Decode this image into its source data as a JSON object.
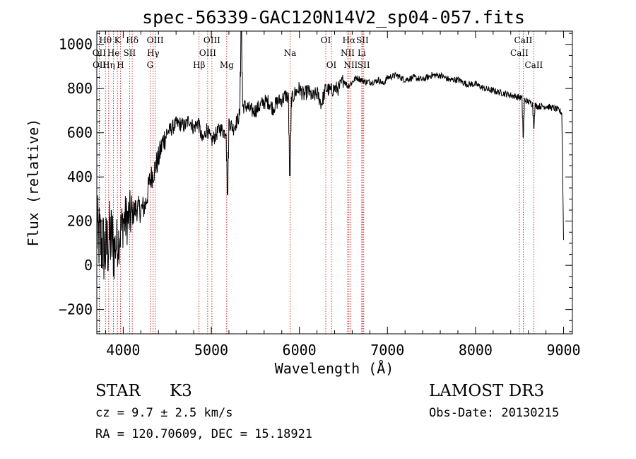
{
  "chart_data": {
    "type": "line",
    "title": "spec-56339-GAC120N14V2_sp04-057.fits",
    "xlabel": "Wavelength (Å)",
    "ylabel": "Flux (relative)",
    "xlim": [
      3700,
      9100
    ],
    "ylim": [
      -310,
      1060
    ],
    "xticks": [
      4000,
      5000,
      6000,
      7000,
      8000,
      9000
    ],
    "xtick_labels": [
      "4000",
      "5000",
      "6000",
      "7000",
      "8000",
      "9000"
    ],
    "yticks": [
      -200,
      0,
      200,
      400,
      600,
      800,
      1000
    ],
    "ytick_labels": [
      "−200",
      "0",
      "200",
      "400",
      "600",
      "800",
      "1000"
    ],
    "series": [
      {
        "name": "spectrum",
        "x": [
          3700,
          3750,
          3800,
          3850,
          3900,
          3950,
          4000,
          4050,
          4100,
          4150,
          4200,
          4250,
          4300,
          4350,
          4400,
          4450,
          4500,
          4550,
          4600,
          4650,
          4700,
          4750,
          4800,
          4850,
          4900,
          4950,
          5000,
          5050,
          5100,
          5150,
          5200,
          5250,
          5300,
          5350,
          5400,
          5450,
          5500,
          5550,
          5600,
          5650,
          5700,
          5750,
          5800,
          5850,
          5900,
          5950,
          6000,
          6050,
          6100,
          6150,
          6200,
          6250,
          6300,
          6350,
          6400,
          6450,
          6500,
          6550,
          6600,
          6650,
          6700,
          6750,
          6800,
          6850,
          6900,
          6950,
          7000,
          7100,
          7200,
          7300,
          7400,
          7500,
          7600,
          7700,
          7800,
          7900,
          8000,
          8100,
          8200,
          8300,
          8400,
          8500,
          8550,
          8600,
          8650,
          8700,
          8800,
          8900,
          8950,
          8980,
          9000
        ],
        "y": [
          150,
          100,
          60,
          130,
          80,
          120,
          200,
          210,
          230,
          260,
          250,
          270,
          380,
          430,
          480,
          560,
          600,
          620,
          640,
          640,
          630,
          660,
          620,
          650,
          560,
          620,
          560,
          590,
          620,
          600,
          650,
          620,
          660,
          720,
          720,
          700,
          700,
          720,
          740,
          740,
          710,
          740,
          750,
          770,
          740,
          780,
          800,
          770,
          790,
          760,
          780,
          730,
          800,
          790,
          800,
          800,
          840,
          810,
          830,
          850,
          840,
          830,
          830,
          830,
          840,
          820,
          850,
          860,
          840,
          850,
          840,
          860,
          860,
          840,
          840,
          820,
          820,
          800,
          790,
          780,
          770,
          760,
          750,
          740,
          730,
          720,
          720,
          710,
          700,
          690,
          120
        ]
      }
    ],
    "line_markers": [
      {
        "label": "Hθ",
        "x": 3798,
        "row": 0
      },
      {
        "label": "OII",
        "x": 3727,
        "row": 1
      },
      {
        "label": "OII",
        "x": 3729,
        "row": 2
      },
      {
        "label": "Hη",
        "x": 3835,
        "row": 2
      },
      {
        "label": "He",
        "x": 3889,
        "row": 1
      },
      {
        "label": "K",
        "x": 3934,
        "row": 0
      },
      {
        "label": "H",
        "x": 3969,
        "row": 2
      },
      {
        "label": "SII",
        "x": 4072,
        "row": 1
      },
      {
        "label": "Hδ",
        "x": 4102,
        "row": 0
      },
      {
        "label": "G",
        "x": 4305,
        "row": 2
      },
      {
        "label": "Hγ",
        "x": 4340,
        "row": 1
      },
      {
        "label": "OIII",
        "x": 4363,
        "row": 0
      },
      {
        "label": "Hβ",
        "x": 4861,
        "row": 2
      },
      {
        "label": "OIII",
        "x": 4959,
        "row": 1
      },
      {
        "label": "OIII",
        "x": 5007,
        "row": 0
      },
      {
        "label": "Mg",
        "x": 5175,
        "row": 2
      },
      {
        "label": "Na",
        "x": 5894,
        "row": 1
      },
      {
        "label": "OI",
        "x": 6300,
        "row": 0
      },
      {
        "label": "OI",
        "x": 6364,
        "row": 2
      },
      {
        "label": "NII",
        "x": 6548,
        "row": 1
      },
      {
        "label": "Hα",
        "x": 6563,
        "row": 0
      },
      {
        "label": "NII",
        "x": 6583,
        "row": 2
      },
      {
        "label": "Li",
        "x": 6708,
        "row": 1
      },
      {
        "label": "SII",
        "x": 6716,
        "row": 0
      },
      {
        "label": "SII",
        "x": 6731,
        "row": 2
      },
      {
        "label": "CaII",
        "x": 8498,
        "row": 1
      },
      {
        "label": "CaII",
        "x": 8542,
        "row": 0
      },
      {
        "label": "CaII",
        "x": 8662,
        "row": 2
      }
    ],
    "spikes": [
      {
        "x": 5340,
        "y": 1060
      },
      {
        "x": 5893,
        "y": 405
      },
      {
        "x": 5185,
        "y": 320
      },
      {
        "x": 8542,
        "y": 580
      },
      {
        "x": 8662,
        "y": 620
      }
    ]
  },
  "info": {
    "object_type": "STAR",
    "subclass": "K3",
    "redshift": "cz = 9.7 ± 2.5 km/s",
    "coords": "RA = 120.70609, DEC =  15.18921",
    "survey": "LAMOST DR3",
    "obs_date": "Obs-Date: 20130215"
  },
  "colors": {
    "line": "#000000",
    "marker": "#cc0000",
    "axis": "#000000"
  }
}
